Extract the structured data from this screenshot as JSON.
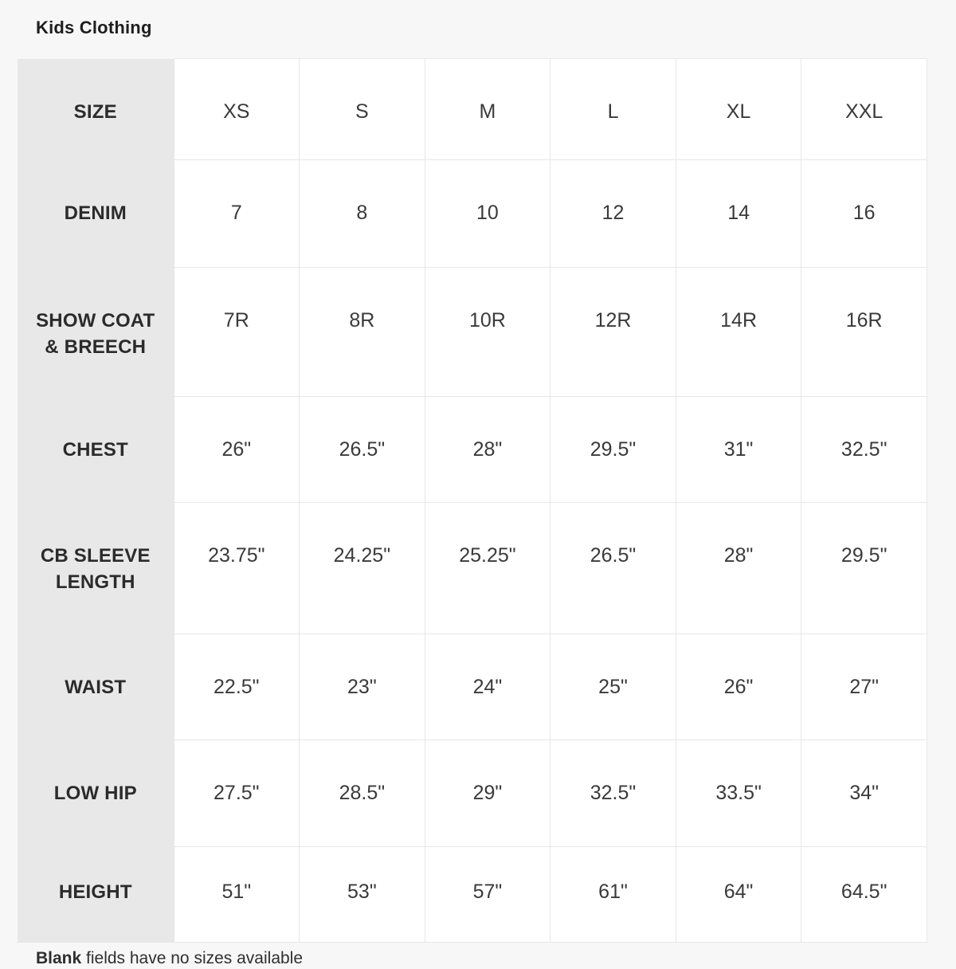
{
  "page": {
    "title": "Kids Clothing",
    "footnote_bold": "Blank",
    "footnote_rest": " fields have no sizes available"
  },
  "colors": {
    "page_bg": "#f7f7f7",
    "label_column_bg": "#e8e8e8",
    "cell_bg": "#ffffff",
    "grid_border": "#e7e7e7",
    "text": "#2b2b2b"
  },
  "chart_data": {
    "type": "table",
    "title": "Kids Clothing",
    "column_headers": [
      "SIZE",
      "XS",
      "S",
      "M",
      "L",
      "XL",
      "XXL"
    ],
    "rows": [
      {
        "label": "DENIM",
        "values": [
          "7",
          "8",
          "10",
          "12",
          "14",
          "16"
        ]
      },
      {
        "label": "SHOW COAT\n& BREECH",
        "values": [
          "7R",
          "8R",
          "10R",
          "12R",
          "14R",
          "16R"
        ]
      },
      {
        "label": "CHEST",
        "values": [
          "26\"",
          "26.5\"",
          "28\"",
          "29.5\"",
          "31\"",
          "32.5\""
        ]
      },
      {
        "label": "CB SLEEVE\nLENGTH",
        "values": [
          "23.75\"",
          "24.25\"",
          "25.25\"",
          "26.5\"",
          "28\"",
          "29.5\""
        ]
      },
      {
        "label": "WAIST",
        "values": [
          "22.5\"",
          "23\"",
          "24\"",
          "25\"",
          "26\"",
          "27\""
        ]
      },
      {
        "label": "LOW HIP",
        "values": [
          "27.5\"",
          "28.5\"",
          "29\"",
          "32.5\"",
          "33.5\"",
          "34\""
        ]
      },
      {
        "label": "HEIGHT",
        "values": [
          "51\"",
          "53\"",
          "57\"",
          "61\"",
          "64\"",
          "64.5\""
        ]
      }
    ]
  }
}
